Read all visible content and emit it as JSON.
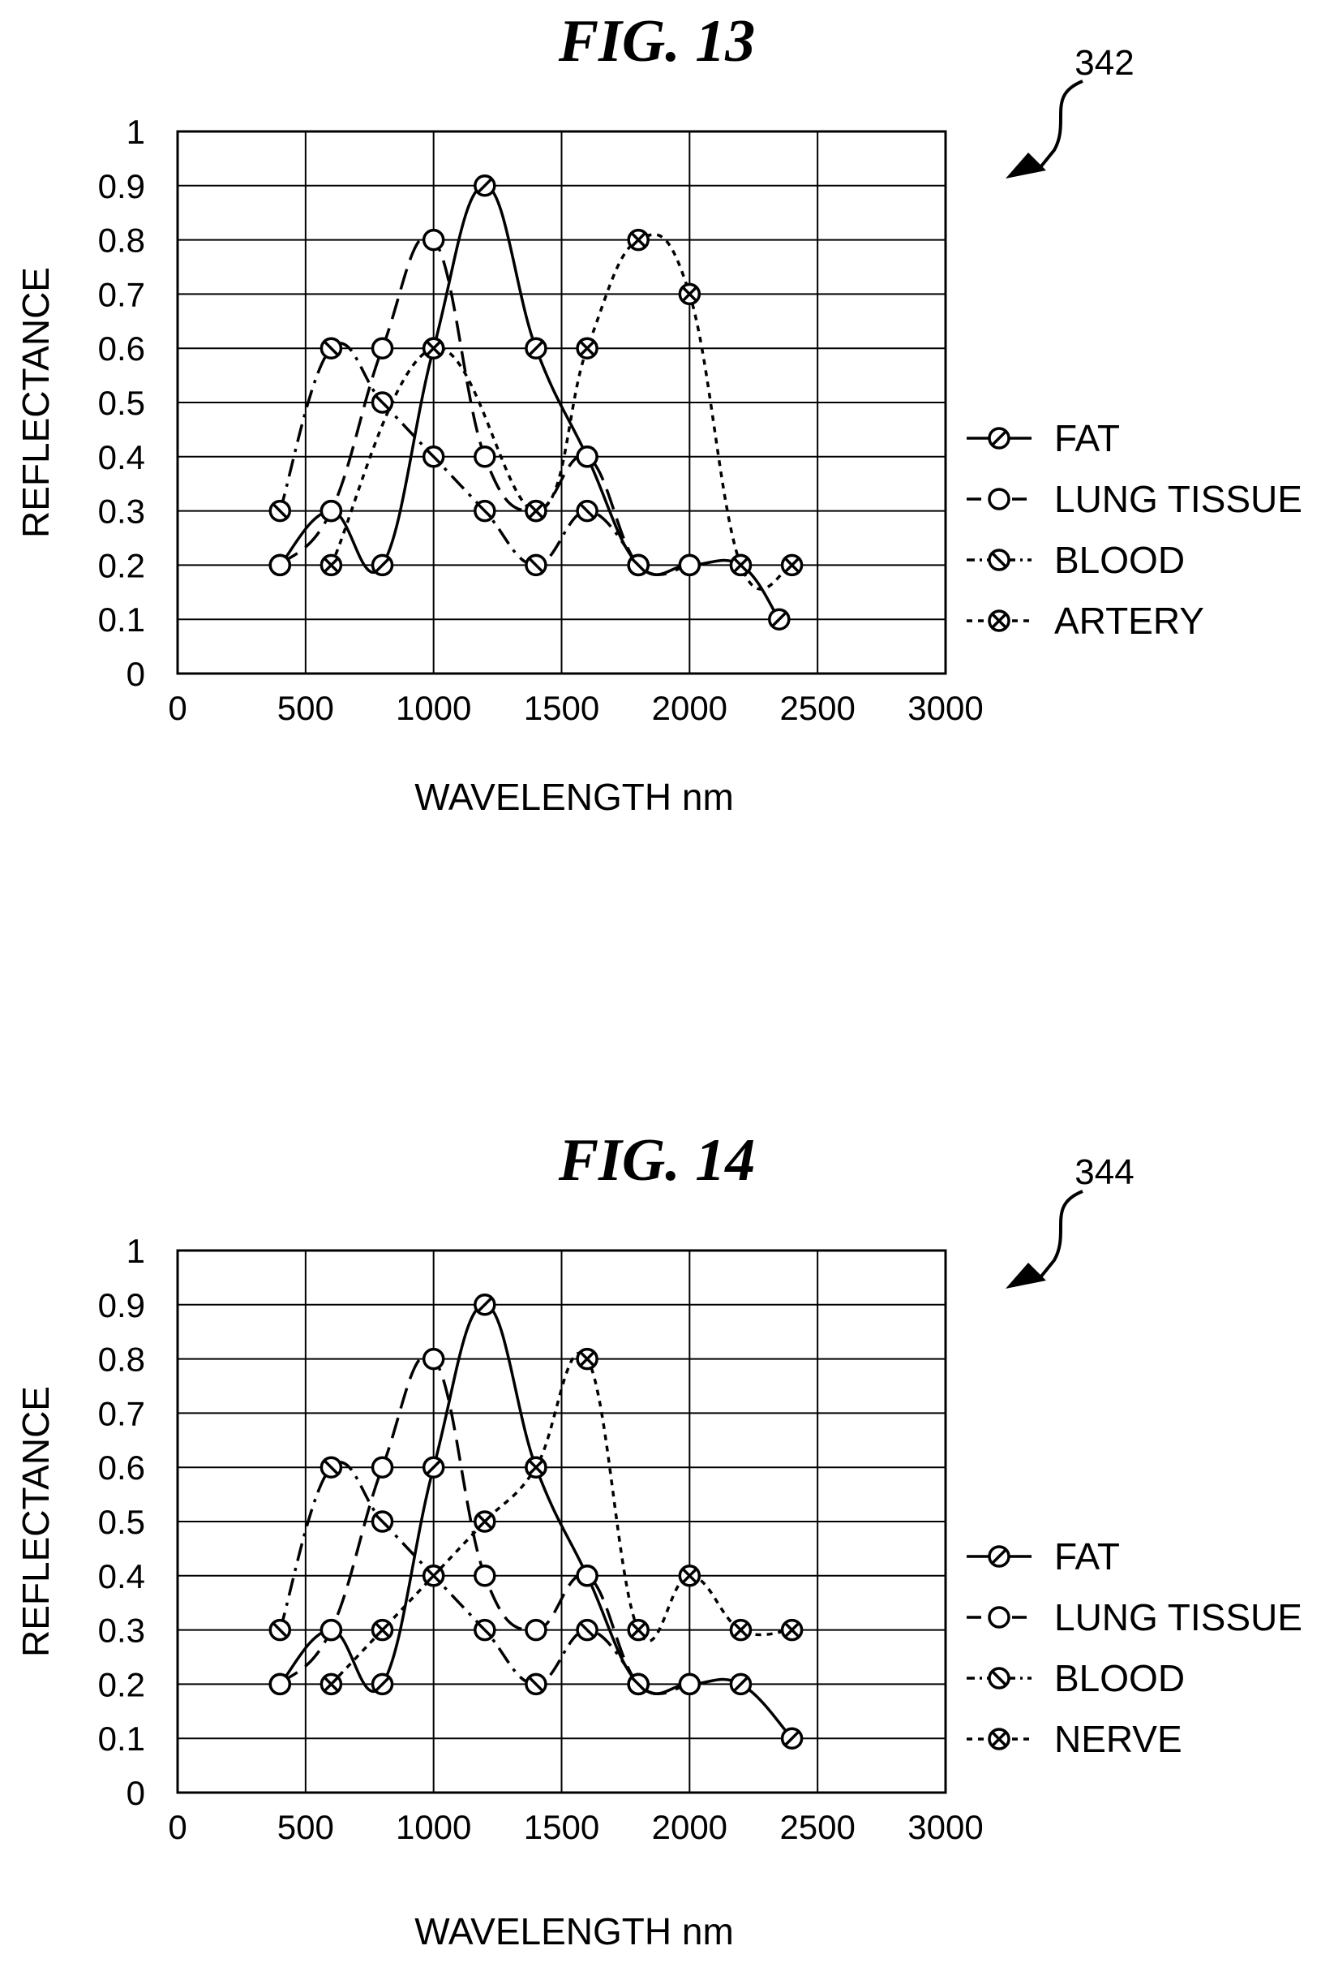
{
  "chart_data": [
    {
      "type": "line",
      "title": "FIG. 13",
      "reference_number": "342",
      "xlabel": "WAVELENGTH nm",
      "ylabel": "REFLECTANCE",
      "xlim": [
        0,
        3000
      ],
      "ylim": [
        0,
        1
      ],
      "x_ticks": [
        0,
        500,
        1000,
        1500,
        2000,
        2500,
        3000
      ],
      "y_ticks": [
        0,
        0.1,
        0.2,
        0.3,
        0.4,
        0.5,
        0.6,
        0.7,
        0.8,
        0.9,
        1
      ],
      "x_tick_labels": [
        "0",
        "500",
        "1000",
        "1500",
        "2000",
        "2500",
        "3000"
      ],
      "y_tick_labels": [
        "0",
        "0.1",
        "0.2",
        "0.3",
        "0.4",
        "0.5",
        "0.6",
        "0.7",
        "0.8",
        "0.9",
        "1"
      ],
      "grid": true,
      "legend_position": "right",
      "series": [
        {
          "name": "FAT",
          "line_style": "solid",
          "marker": "slash-circle",
          "points": [
            [
              400,
              0.2
            ],
            [
              600,
              0.3
            ],
            [
              800,
              0.2
            ],
            [
              1000,
              0.6
            ],
            [
              1200,
              0.9
            ],
            [
              1400,
              0.6
            ],
            [
              1600,
              0.4
            ],
            [
              1800,
              0.2
            ],
            [
              2000,
              0.2
            ],
            [
              2200,
              0.2
            ],
            [
              2350,
              0.1
            ]
          ]
        },
        {
          "name": "LUNG TISSUE",
          "line_style": "dashed",
          "marker": "circle",
          "points": [
            [
              400,
              0.2
            ],
            [
              600,
              0.3
            ],
            [
              800,
              0.6
            ],
            [
              1000,
              0.8
            ],
            [
              1200,
              0.4
            ],
            [
              1400,
              0.3
            ],
            [
              1600,
              0.4
            ],
            [
              1800,
              0.2
            ],
            [
              2000,
              0.2
            ]
          ]
        },
        {
          "name": "BLOOD",
          "line_style": "dash-dot",
          "marker": "backslash-circle",
          "points": [
            [
              400,
              0.3
            ],
            [
              600,
              0.6
            ],
            [
              800,
              0.5
            ],
            [
              1000,
              0.4
            ],
            [
              1200,
              0.3
            ],
            [
              1400,
              0.2
            ],
            [
              1600,
              0.3
            ],
            [
              1800,
              0.2
            ]
          ]
        },
        {
          "name": "ARTERY",
          "line_style": "dotted",
          "marker": "x-circle",
          "points": [
            [
              600,
              0.2
            ],
            [
              1000,
              0.6
            ],
            [
              1400,
              0.3
            ],
            [
              1600,
              0.6
            ],
            [
              1800,
              0.8
            ],
            [
              2000,
              0.7
            ],
            [
              2200,
              0.2
            ],
            [
              2400,
              0.2
            ]
          ]
        }
      ]
    },
    {
      "type": "line",
      "title": "FIG. 14",
      "reference_number": "344",
      "xlabel": "WAVELENGTH nm",
      "ylabel": "REFLECTANCE",
      "xlim": [
        0,
        3000
      ],
      "ylim": [
        0,
        1
      ],
      "x_ticks": [
        0,
        500,
        1000,
        1500,
        2000,
        2500,
        3000
      ],
      "y_ticks": [
        0,
        0.1,
        0.2,
        0.3,
        0.4,
        0.5,
        0.6,
        0.7,
        0.8,
        0.9,
        1
      ],
      "x_tick_labels": [
        "0",
        "500",
        "1000",
        "1500",
        "2000",
        "2500",
        "3000"
      ],
      "y_tick_labels": [
        "0",
        "0.1",
        "0.2",
        "0.3",
        "0.4",
        "0.5",
        "0.6",
        "0.7",
        "0.8",
        "0.9",
        "1"
      ],
      "grid": true,
      "legend_position": "right",
      "series": [
        {
          "name": "FAT",
          "line_style": "solid",
          "marker": "slash-circle",
          "points": [
            [
              400,
              0.2
            ],
            [
              600,
              0.3
            ],
            [
              800,
              0.2
            ],
            [
              1000,
              0.6
            ],
            [
              1200,
              0.9
            ],
            [
              1400,
              0.6
            ],
            [
              1600,
              0.4
            ],
            [
              1800,
              0.2
            ],
            [
              2000,
              0.2
            ],
            [
              2200,
              0.2
            ],
            [
              2400,
              0.1
            ]
          ]
        },
        {
          "name": "LUNG TISSUE",
          "line_style": "dashed",
          "marker": "circle",
          "points": [
            [
              400,
              0.2
            ],
            [
              600,
              0.3
            ],
            [
              800,
              0.6
            ],
            [
              1000,
              0.8
            ],
            [
              1200,
              0.4
            ],
            [
              1400,
              0.3
            ],
            [
              1600,
              0.4
            ],
            [
              1800,
              0.2
            ],
            [
              2000,
              0.2
            ]
          ]
        },
        {
          "name": "BLOOD",
          "line_style": "dash-dot",
          "marker": "backslash-circle",
          "points": [
            [
              400,
              0.3
            ],
            [
              600,
              0.6
            ],
            [
              800,
              0.5
            ],
            [
              1000,
              0.4
            ],
            [
              1200,
              0.3
            ],
            [
              1400,
              0.2
            ],
            [
              1600,
              0.3
            ],
            [
              1800,
              0.2
            ]
          ]
        },
        {
          "name": "NERVE",
          "line_style": "dotted",
          "marker": "x-circle",
          "points": [
            [
              600,
              0.2
            ],
            [
              800,
              0.3
            ],
            [
              1000,
              0.4
            ],
            [
              1200,
              0.5
            ],
            [
              1400,
              0.6
            ],
            [
              1600,
              0.8
            ],
            [
              1800,
              0.3
            ],
            [
              2000,
              0.4
            ],
            [
              2200,
              0.3
            ],
            [
              2400,
              0.3
            ]
          ]
        }
      ]
    }
  ]
}
